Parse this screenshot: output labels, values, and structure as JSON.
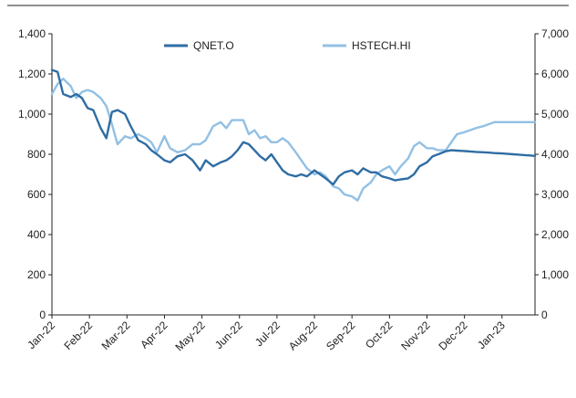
{
  "chart_data": {
    "type": "line",
    "categories": [
      "Jan-22",
      "Feb-22",
      "Mar-22",
      "Apr-22",
      "May-22",
      "Jun-22",
      "Jul-22",
      "Aug-22",
      "Sep-22",
      "Oct-22",
      "Nov-22",
      "Dec-22",
      "Jan-23"
    ],
    "y_left": {
      "min": 0,
      "max": 1400,
      "ticks": [
        "0",
        "200",
        "400",
        "600",
        "800",
        "1,000",
        "1,200",
        "1,400"
      ]
    },
    "y_right": {
      "min": 0,
      "max": 7000,
      "ticks": [
        "0",
        "1,000",
        "2,000",
        "3,000",
        "4,000",
        "5,000",
        "6,000",
        "7,000"
      ]
    },
    "legend_position": "top-center",
    "grid": false,
    "series": [
      {
        "name": "QNET.O",
        "axis": "left",
        "color": "#2f6da3",
        "x": [
          0,
          0.15,
          0.3,
          0.5,
          0.65,
          0.8,
          0.95,
          1.1,
          1.3,
          1.45,
          1.6,
          1.75,
          1.95,
          2.1,
          2.3,
          2.5,
          2.65,
          2.8,
          3.0,
          3.15,
          3.35,
          3.55,
          3.75,
          3.95,
          4.1,
          4.3,
          4.5,
          4.65,
          4.8,
          4.95,
          5.1,
          5.25,
          5.4,
          5.55,
          5.7,
          5.85,
          6.0,
          6.15,
          6.3,
          6.5,
          6.65,
          6.8,
          7.0,
          7.15,
          7.3,
          7.5,
          7.65,
          7.8,
          8.0,
          8.15,
          8.3,
          8.5,
          8.65,
          8.8,
          9.0,
          9.15,
          9.3,
          9.5,
          9.65,
          9.8,
          10.0,
          10.15,
          10.3,
          10.5,
          10.65,
          10.8,
          11.0,
          11.15,
          11.3,
          11.5,
          11.65,
          11.8,
          12.0,
          12.15,
          12.3,
          12.45,
          12.6,
          12.75,
          12.88
        ],
        "values": [
          1220,
          1210,
          1100,
          1085,
          1100,
          1080,
          1030,
          1020,
          930,
          880,
          1010,
          1020,
          1000,
          940,
          870,
          850,
          820,
          800,
          770,
          760,
          790,
          800,
          770,
          720,
          770,
          740,
          760,
          770,
          790,
          820,
          860,
          850,
          820,
          790,
          770,
          800,
          760,
          720,
          700,
          690,
          700,
          690,
          720,
          700,
          680,
          650,
          690,
          710,
          720,
          700,
          730,
          710,
          710,
          690,
          680,
          670,
          675,
          680,
          700,
          740,
          760,
          790,
          800,
          815,
          820,
          818,
          816,
          814,
          812,
          810,
          808,
          806,
          804,
          802,
          800,
          798,
          796,
          794,
          792
        ]
      },
      {
        "name": "HSTECH.HI",
        "axis": "right",
        "color": "#92c0e4",
        "x": [
          0,
          0.15,
          0.3,
          0.5,
          0.65,
          0.8,
          0.95,
          1.1,
          1.3,
          1.45,
          1.6,
          1.75,
          1.95,
          2.1,
          2.3,
          2.5,
          2.65,
          2.8,
          3.0,
          3.15,
          3.35,
          3.55,
          3.75,
          3.95,
          4.1,
          4.3,
          4.5,
          4.65,
          4.8,
          4.95,
          5.1,
          5.25,
          5.4,
          5.55,
          5.7,
          5.85,
          6.0,
          6.15,
          6.3,
          6.5,
          6.65,
          6.8,
          7.0,
          7.15,
          7.3,
          7.5,
          7.65,
          7.8,
          8.0,
          8.15,
          8.3,
          8.5,
          8.65,
          8.8,
          9.0,
          9.15,
          9.3,
          9.5,
          9.65,
          9.8,
          10.0,
          10.15,
          10.3,
          10.5,
          10.65,
          10.8,
          11.0,
          11.15,
          11.3,
          11.5,
          11.65,
          11.8,
          12.0,
          12.15,
          12.3,
          12.45,
          12.6,
          12.75,
          12.88
        ],
        "values": [
          5500,
          5750,
          5880,
          5700,
          5400,
          5550,
          5600,
          5550,
          5400,
          5200,
          4750,
          4250,
          4450,
          4400,
          4500,
          4400,
          4300,
          4050,
          4450,
          4150,
          4050,
          4100,
          4250,
          4250,
          4350,
          4700,
          4800,
          4650,
          4850,
          4850,
          4850,
          4500,
          4600,
          4400,
          4450,
          4300,
          4300,
          4400,
          4300,
          4050,
          3850,
          3650,
          3500,
          3550,
          3450,
          3200,
          3150,
          3000,
          2950,
          2850,
          3150,
          3300,
          3500,
          3600,
          3700,
          3500,
          3700,
          3900,
          4200,
          4300,
          4150,
          4150,
          4100,
          4100,
          4300,
          4500,
          4550,
          4600,
          4650,
          4700,
          4750,
          4800,
          4800,
          4800,
          4800,
          4800,
          4800,
          4800,
          4800
        ]
      }
    ]
  }
}
